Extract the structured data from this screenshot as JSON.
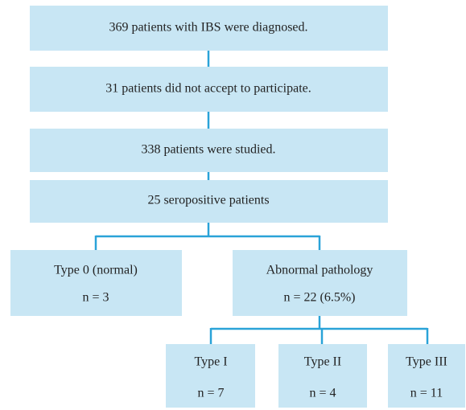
{
  "nodes": [
    {
      "label": "369 patients with IBS were diagnosed."
    },
    {
      "label": "31 patients did not accept to participate."
    },
    {
      "label": "338 patients were studied."
    },
    {
      "label": "25 seropositive patients"
    },
    {
      "label": "Type 0 (normal)",
      "detail": "n = 3"
    },
    {
      "label": "Abnormal pathology",
      "detail": "n = 22 (6.5%)"
    },
    {
      "label": "Type I",
      "detail": "n = 7"
    },
    {
      "label": "Type II",
      "detail": "n = 4"
    },
    {
      "label": "Type III",
      "detail": "n = 11"
    }
  ]
}
